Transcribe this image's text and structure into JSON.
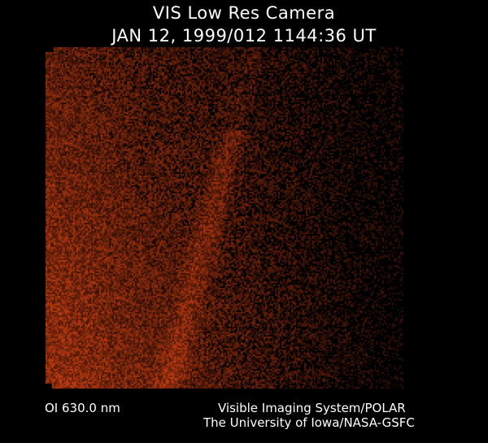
{
  "header": {
    "title": "VIS Low Res Camera",
    "timestamp": "JAN 12, 1999/012 1144:36 UT"
  },
  "image": {
    "description_colormap": "#b83a10"
  },
  "footer": {
    "filter": "OI  630.0 nm",
    "credit_line1": "Visible Imaging System/POLAR",
    "credit_line2": "The University of Iowa/NASA-GSFC"
  }
}
